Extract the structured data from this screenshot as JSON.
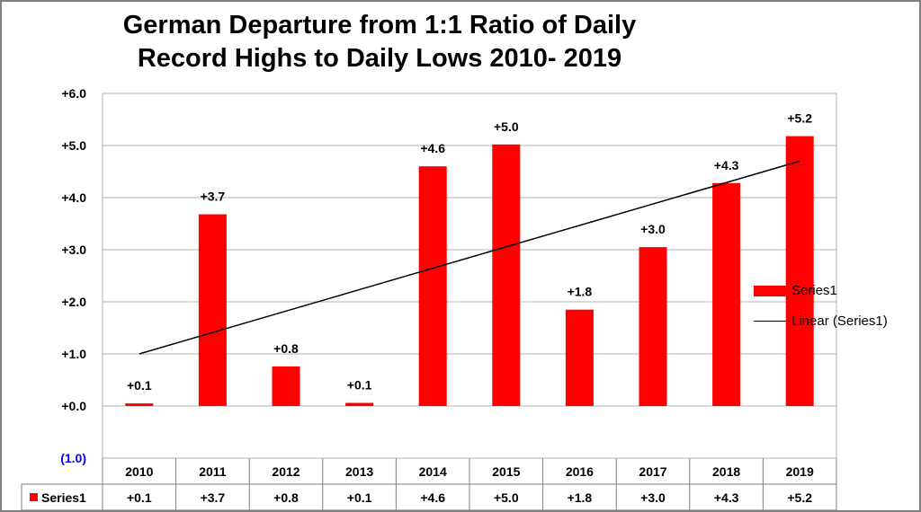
{
  "chart_data": {
    "type": "bar",
    "title": "German Departure from 1:1 Ratio of Daily Record Highs to Daily Lows 2010- 2019",
    "title_lines": [
      "German Departure from 1:1 Ratio of Daily",
      "Record Highs to Daily Lows 2010- 2019"
    ],
    "categories": [
      "2010",
      "2011",
      "2012",
      "2013",
      "2014",
      "2015",
      "2016",
      "2017",
      "2018",
      "2019"
    ],
    "series": [
      {
        "name": "Series1",
        "values": [
          0.05,
          3.68,
          0.76,
          0.06,
          4.6,
          5.02,
          1.85,
          3.05,
          4.28,
          5.18
        ],
        "labels": [
          "+0.1",
          "+3.7",
          "+0.8",
          "+0.1",
          "+4.6",
          "+5.0",
          "+1.8",
          "+3.0",
          "+4.3",
          "+5.2"
        ],
        "color": "#ff0000"
      }
    ],
    "trendline": {
      "name": "Linear (Series1)",
      "start": 1.0,
      "end": 4.7,
      "color": "#000000"
    },
    "ylim": [
      -1,
      6
    ],
    "yticks": [
      6,
      5,
      4,
      3,
      2,
      1,
      0,
      -1
    ],
    "ytick_labels": [
      "+6.0",
      "+5.0",
      "+4.0",
      "+3.0",
      "+2.0",
      "+1.0",
      "+0.0",
      "(1.0)"
    ],
    "negative_tick_color": "#0000ff",
    "grid": true,
    "legend_position": "right",
    "data_table": true,
    "data_table_row_label": "Series1"
  }
}
